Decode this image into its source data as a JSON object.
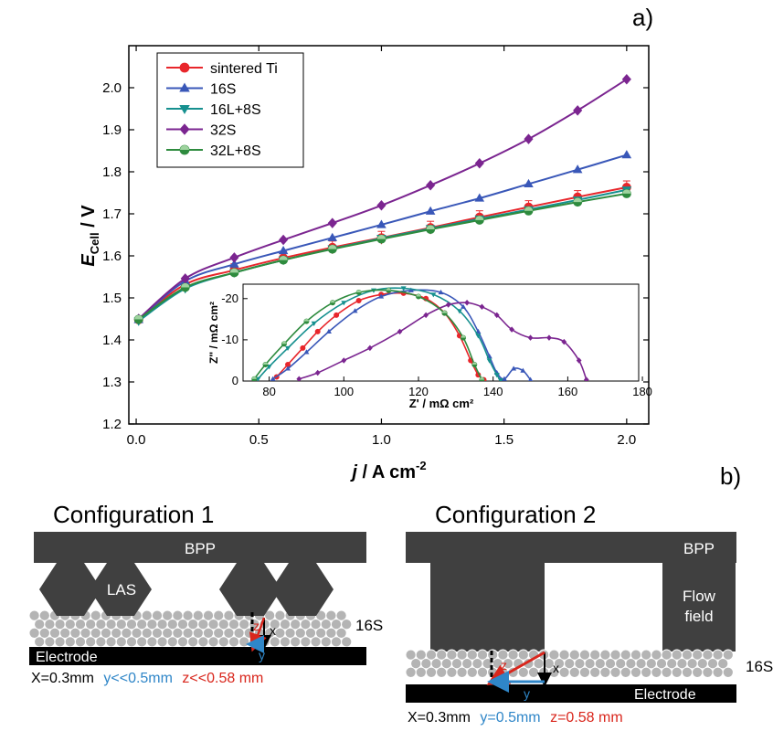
{
  "chart_data": [
    {
      "type": "line",
      "panel_label": "a)",
      "xlabel_main": "j",
      "xlabel_rest": " / A cm",
      "xlabel_sup": "-2",
      "ylabel_main": "E",
      "ylabel_sub": "Cell",
      "ylabel_rest": " / V",
      "xlim": [
        0.0,
        2.0
      ],
      "ylim": [
        1.2,
        2.0
      ],
      "xticks": [
        "0.0",
        "0.5",
        "1.0",
        "1.5",
        "2.0"
      ],
      "xtick_values": [
        0.0,
        0.5,
        1.0,
        1.5,
        2.0
      ],
      "yticks": [
        "1.2",
        "1.3",
        "1.4",
        "1.5",
        "1.6",
        "1.7",
        "1.8",
        "1.9",
        "2.0"
      ],
      "ytick_values": [
        1.2,
        1.3,
        1.4,
        1.5,
        1.6,
        1.7,
        1.8,
        1.9,
        2.0
      ],
      "legend_position": "top-left",
      "x": [
        0.01,
        0.2,
        0.4,
        0.6,
        0.8,
        1.0,
        1.2,
        1.4,
        1.6,
        1.8,
        2.0
      ],
      "series": [
        {
          "name": "sintered Ti",
          "color": "#e8262b",
          "marker": "circle",
          "values": [
            1.448,
            1.532,
            1.566,
            1.595,
            1.62,
            1.643,
            1.667,
            1.692,
            1.716,
            1.74,
            1.763
          ]
        },
        {
          "name": "16S",
          "color": "#3957b8",
          "marker": "triangle-up",
          "values": [
            1.448,
            1.54,
            1.58,
            1.612,
            1.643,
            1.674,
            1.706,
            1.737,
            1.771,
            1.805,
            1.84
          ]
        },
        {
          "name": "16L+8S",
          "color": "#16908f",
          "marker": "triangle-down",
          "values": [
            1.445,
            1.522,
            1.56,
            1.59,
            1.617,
            1.642,
            1.665,
            1.688,
            1.71,
            1.733,
            1.757
          ]
        },
        {
          "name": "32S",
          "color": "#7b2590",
          "marker": "diamond",
          "values": [
            1.45,
            1.546,
            1.596,
            1.638,
            1.678,
            1.72,
            1.768,
            1.82,
            1.878,
            1.946,
            2.02
          ]
        },
        {
          "name": "32L+8S",
          "color": "#2e8b3e",
          "marker": "circle-half",
          "values": [
            1.449,
            1.525,
            1.56,
            1.59,
            1.616,
            1.64,
            1.663,
            1.685,
            1.707,
            1.728,
            1.748
          ]
        }
      ]
    },
    {
      "type": "scatter",
      "role": "inset",
      "xlabel": "Z' / mΩ cm²",
      "ylabel": "Z'' / mΩ cm²",
      "xlim": [
        75,
        180
      ],
      "ylim": [
        0,
        -23
      ],
      "xticks": [
        "80",
        "100",
        "120",
        "140",
        "160",
        "180"
      ],
      "xtick_values": [
        80,
        100,
        120,
        140,
        160,
        180
      ],
      "yticks": [
        "0",
        "-10",
        "-20"
      ],
      "ytick_values": [
        0,
        -10,
        -20
      ],
      "series": [
        {
          "name": "sintered Ti",
          "color": "#e8262b",
          "x": [
            82,
            85,
            89,
            93,
            98,
            104,
            110,
            116,
            122,
            127,
            131,
            134,
            136,
            137.5
          ],
          "y": [
            -1,
            -4,
            -8,
            -12,
            -16,
            -19.5,
            -21,
            -21.3,
            -20,
            -16.5,
            -11,
            -5,
            -1.5,
            -0.3
          ]
        },
        {
          "name": "16S",
          "color": "#3957b8",
          "x": [
            81,
            85,
            90,
            96,
            103,
            110,
            118,
            126,
            132,
            136,
            139,
            141,
            143,
            145.5,
            148,
            150
          ],
          "y": [
            -0.5,
            -3,
            -7,
            -12,
            -17,
            -20.5,
            -22,
            -21.5,
            -18,
            -12,
            -6,
            -2,
            -0.5,
            -3,
            -2.5,
            -0.3
          ]
        },
        {
          "name": "16L+8S",
          "color": "#16908f",
          "x": [
            77,
            80,
            85,
            92,
            100,
            108,
            116,
            124,
            131,
            136,
            139,
            141,
            142
          ],
          "y": [
            -0.5,
            -3.5,
            -8,
            -14,
            -19,
            -22,
            -22.5,
            -21,
            -17,
            -11,
            -5,
            -1.5,
            -0.2
          ]
        },
        {
          "name": "32S",
          "color": "#7b2590",
          "x": [
            88,
            93,
            100,
            107,
            115,
            122,
            128,
            133,
            137,
            141,
            145,
            150,
            155,
            159,
            163,
            165
          ],
          "y": [
            -0.5,
            -2,
            -5,
            -8,
            -12,
            -16,
            -18.5,
            -19,
            -18,
            -16,
            -12.5,
            -10.5,
            -10.5,
            -9.5,
            -5,
            -0.3
          ]
        },
        {
          "name": "32L+8S",
          "color": "#2e8b3e",
          "x": [
            76,
            79,
            84,
            90,
            97,
            104,
            112,
            120,
            127,
            132,
            135,
            137
          ],
          "y": [
            -0.5,
            -4,
            -9,
            -14.5,
            -19,
            -21.5,
            -22,
            -20.5,
            -16.5,
            -10.5,
            -4,
            -0.3
          ]
        }
      ]
    }
  ],
  "panel_b": {
    "label": "b)",
    "config1": {
      "title": "Configuration 1",
      "bpp": "BPP",
      "las": "LAS",
      "ptl": "16S",
      "electrode": "Electrode",
      "z": "z",
      "x": "x",
      "y": "y",
      "cap_x": "X=0.3mm",
      "cap_y": "y<<0.5mm",
      "cap_z": "z<<0.58 mm"
    },
    "config2": {
      "title": "Configuration 2",
      "bpp": "BPP",
      "flow1": "Flow",
      "flow2": "field",
      "ptl": "16S",
      "electrode": "Electrode",
      "z": "z",
      "x": "x",
      "y": "y",
      "cap_x": "X=0.3mm",
      "cap_y": "y=0.5mm",
      "cap_z": "z=0.58 mm"
    },
    "colors": {
      "dark": "#404040",
      "particle": "#b4b4b4",
      "red": "#d9261c",
      "blue": "#2f86c8",
      "black": "#000000"
    }
  }
}
